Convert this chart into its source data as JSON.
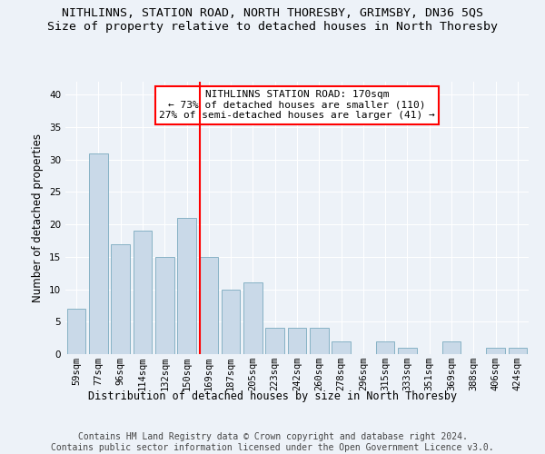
{
  "title": "NITHLINNS, STATION ROAD, NORTH THORESBY, GRIMSBY, DN36 5QS",
  "subtitle": "Size of property relative to detached houses in North Thoresby",
  "xlabel": "Distribution of detached houses by size in North Thoresby",
  "ylabel": "Number of detached properties",
  "categories": [
    "59sqm",
    "77sqm",
    "96sqm",
    "114sqm",
    "132sqm",
    "150sqm",
    "169sqm",
    "187sqm",
    "205sqm",
    "223sqm",
    "242sqm",
    "260sqm",
    "278sqm",
    "296sqm",
    "315sqm",
    "333sqm",
    "351sqm",
    "369sqm",
    "388sqm",
    "406sqm",
    "424sqm"
  ],
  "values": [
    7,
    31,
    17,
    19,
    15,
    21,
    15,
    10,
    11,
    4,
    4,
    4,
    2,
    0,
    2,
    1,
    0,
    2,
    0,
    1,
    1
  ],
  "bar_color": "#c9d9e8",
  "bar_edge_color": "#7aaabf",
  "vline_color": "red",
  "vline_index": 6,
  "annotation_text": "NITHLINNS STATION ROAD: 170sqm\n← 73% of detached houses are smaller (110)\n27% of semi-detached houses are larger (41) →",
  "annotation_box_color": "white",
  "annotation_box_edge_color": "red",
  "ylim": [
    0,
    42
  ],
  "yticks": [
    0,
    5,
    10,
    15,
    20,
    25,
    30,
    35,
    40
  ],
  "footer": "Contains HM Land Registry data © Crown copyright and database right 2024.\nContains public sector information licensed under the Open Government Licence v3.0.",
  "background_color": "#edf2f8",
  "plot_background_color": "#edf2f8",
  "title_fontsize": 9.5,
  "subtitle_fontsize": 9.5,
  "axis_label_fontsize": 8.5,
  "tick_fontsize": 7.5,
  "annotation_fontsize": 8,
  "footer_fontsize": 7
}
